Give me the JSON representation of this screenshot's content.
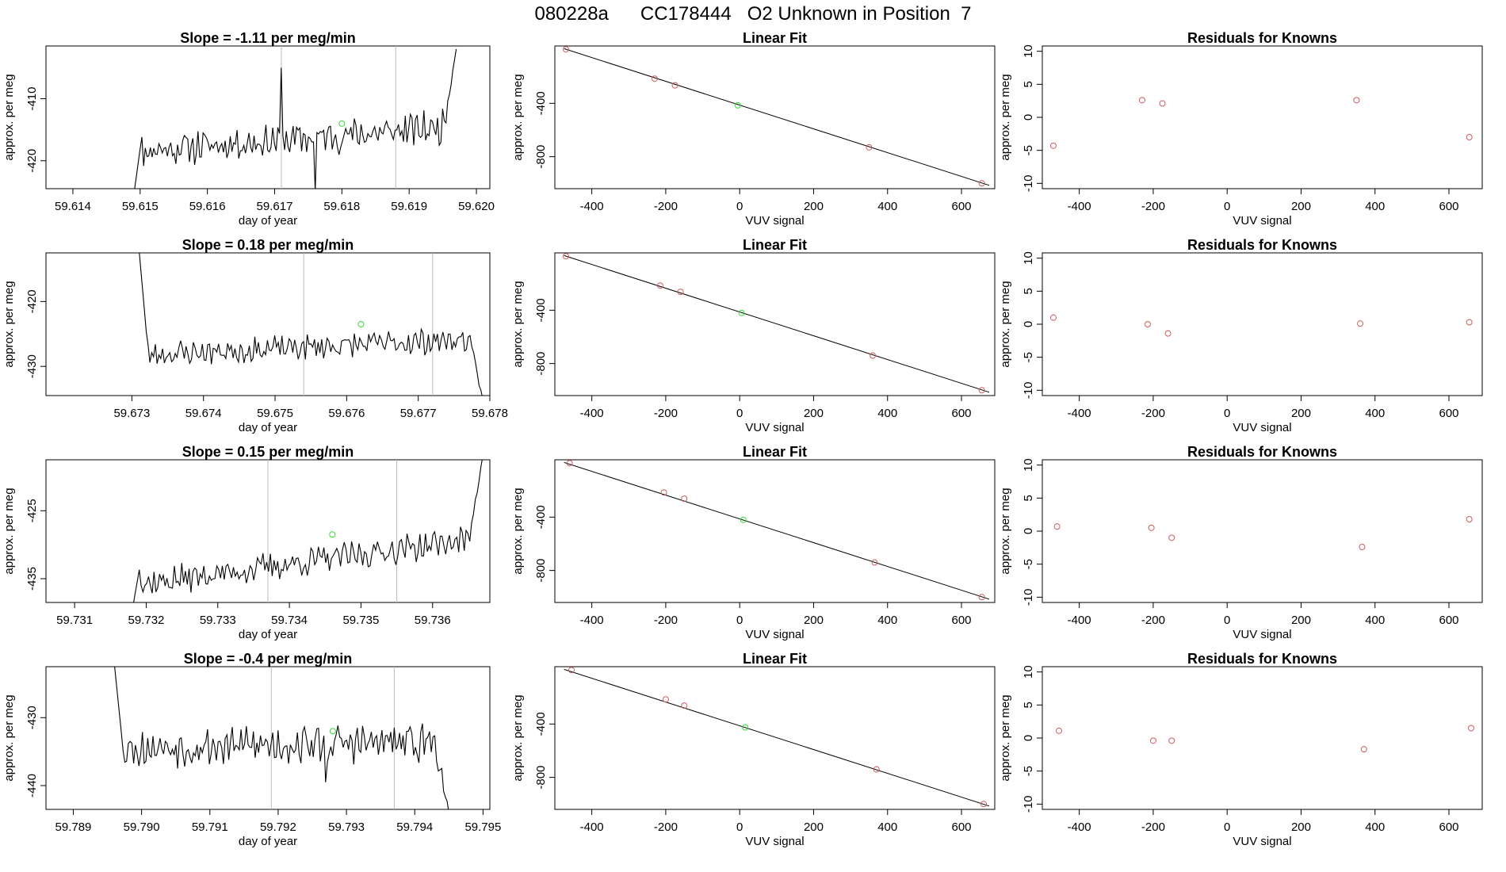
{
  "figure": {
    "title_id": "080228a",
    "title_cylinder": "CC178444",
    "title_text": "O2 Unknown in Position  7"
  },
  "colors": {
    "known": "#cd5c5c",
    "unknown": "#33dd33",
    "line": "#000000",
    "vline": "#bbbbbb"
  },
  "chart_data": [
    {
      "type": "line",
      "panel": "timeseries",
      "row": 1,
      "title": "Slope =  -1.11  per meg/min",
      "xlabel": "day of year",
      "ylabel": "approx. per meg",
      "xlim": [
        59.6136,
        59.6202
      ],
      "ylim": [
        -424.5,
        -401.5
      ],
      "xticks": [
        "59.614",
        "59.615",
        "59.616",
        "59.617",
        "59.618",
        "59.619",
        "59.620"
      ],
      "yticks": [
        "-410",
        "-420"
      ],
      "ytick_values": [
        -410,
        -420
      ],
      "x_start": 59.6149,
      "x_end": 59.6197,
      "start_value": -426,
      "base_level": -416.5,
      "trend_per_window": 4.0,
      "end_rise": -402,
      "noise": 2.2,
      "seed": 11,
      "vlines": [
        59.6171,
        59.6188
      ],
      "unknown_point": {
        "x": 59.618,
        "y": -414
      },
      "spikes": [
        {
          "x": 59.6176,
          "y": -425
        },
        {
          "x": 59.6171,
          "y": -405
        }
      ]
    },
    {
      "type": "scatter",
      "panel": "linear_fit",
      "row": 1,
      "title": "Linear Fit",
      "xlabel": "VUV signal",
      "ylabel": "approx. per meg",
      "xlim": [
        -500,
        690
      ],
      "ylim": [
        -1040,
        30
      ],
      "xticks": [
        "-400",
        "-200",
        "0",
        "200",
        "400",
        "600"
      ],
      "xtick_values": [
        -400,
        -200,
        0,
        200,
        400,
        600
      ],
      "yticks": [
        "-400",
        "-800"
      ],
      "ytick_values": [
        -400,
        -800
      ],
      "fit_line": {
        "x": [
          -475,
          675
        ],
        "y": [
          10,
          -1015
        ]
      },
      "knowns": [
        {
          "x": -470,
          "y": 5
        },
        {
          "x": -230,
          "y": -215
        },
        {
          "x": -175,
          "y": -265
        },
        {
          "x": 350,
          "y": -730
        },
        {
          "x": 655,
          "y": -1000
        }
      ],
      "unknown": {
        "x": -5,
        "y": -415
      }
    },
    {
      "type": "scatter",
      "panel": "residuals",
      "row": 1,
      "title": "Residuals for Knowns",
      "xlabel": "VUV signal",
      "ylabel": "approx. per meg",
      "xlim": [
        -500,
        690
      ],
      "ylim": [
        -10.8,
        10.8
      ],
      "xticks": [
        "-400",
        "-200",
        "0",
        "200",
        "400",
        "600"
      ],
      "xtick_values": [
        -400,
        -200,
        0,
        200,
        400,
        600
      ],
      "yticks": [
        "10",
        "5",
        "0",
        "-5",
        "-10"
      ],
      "ytick_values": [
        10,
        5,
        0,
        -5,
        -10
      ],
      "knowns": [
        {
          "x": -470,
          "y": -4.3
        },
        {
          "x": -230,
          "y": 2.6
        },
        {
          "x": -175,
          "y": 2.1
        },
        {
          "x": 350,
          "y": 2.6
        },
        {
          "x": 655,
          "y": -3.0
        }
      ]
    },
    {
      "type": "line",
      "panel": "timeseries",
      "row": 2,
      "title": "Slope =  0.18  per meg/min",
      "xlabel": "day of year",
      "ylabel": "approx. per meg",
      "xlim": [
        59.6718,
        59.678
      ],
      "ylim": [
        -434.5,
        -412.5
      ],
      "xticks": [
        "59.673",
        "59.674",
        "59.675",
        "59.676",
        "59.677",
        "59.678"
      ],
      "yticks": [
        "-420",
        "-430"
      ],
      "ytick_values": [
        -420,
        -430
      ],
      "x_start": 59.6731,
      "x_end": 59.6779,
      "start_value": -412,
      "base_level": -427,
      "trend_per_window": 2.5,
      "end_rise": -435,
      "noise": 1.6,
      "seed": 23,
      "vlines": [
        59.6754,
        59.6772
      ],
      "unknown_point": {
        "x": 59.6762,
        "y": -423.5
      },
      "spikes": [
        {
          "x": 59.6736,
          "y": -428
        }
      ]
    },
    {
      "type": "scatter",
      "panel": "linear_fit",
      "row": 2,
      "title": "Linear Fit",
      "xlabel": "VUV signal",
      "ylabel": "approx. per meg",
      "xlim": [
        -500,
        690
      ],
      "ylim": [
        -1040,
        30
      ],
      "xticks": [
        "-400",
        "-200",
        "0",
        "200",
        "400",
        "600"
      ],
      "xtick_values": [
        -400,
        -200,
        0,
        200,
        400,
        600
      ],
      "yticks": [
        "-400",
        "-800"
      ],
      "ytick_values": [
        -400,
        -800
      ],
      "fit_line": {
        "x": [
          -475,
          675
        ],
        "y": [
          10,
          -1015
        ]
      },
      "knowns": [
        {
          "x": -470,
          "y": 5
        },
        {
          "x": -215,
          "y": -215
        },
        {
          "x": -160,
          "y": -262
        },
        {
          "x": 360,
          "y": -740
        },
        {
          "x": 655,
          "y": -1000
        }
      ],
      "unknown": {
        "x": 5,
        "y": -420
      }
    },
    {
      "type": "scatter",
      "panel": "residuals",
      "row": 2,
      "title": "Residuals for Knowns",
      "xlabel": "VUV signal",
      "ylabel": "approx. per meg",
      "xlim": [
        -500,
        690
      ],
      "ylim": [
        -10.8,
        10.8
      ],
      "xticks": [
        "-400",
        "-200",
        "0",
        "200",
        "400",
        "600"
      ],
      "xtick_values": [
        -400,
        -200,
        0,
        200,
        400,
        600
      ],
      "yticks": [
        "10",
        "5",
        "0",
        "-5",
        "-10"
      ],
      "ytick_values": [
        10,
        5,
        0,
        -5,
        -10
      ],
      "knowns": [
        {
          "x": -470,
          "y": 1.0
        },
        {
          "x": -215,
          "y": 0.0
        },
        {
          "x": -160,
          "y": -1.4
        },
        {
          "x": 360,
          "y": 0.1
        },
        {
          "x": 655,
          "y": 0.3
        }
      ]
    },
    {
      "type": "line",
      "panel": "timeseries",
      "row": 3,
      "title": "Slope =  0.15  per meg/min",
      "xlabel": "day of year",
      "ylabel": "approx. per meg",
      "xlim": [
        59.7306,
        59.7368
      ],
      "ylim": [
        -438.5,
        -417.5
      ],
      "xticks": [
        "59.731",
        "59.732",
        "59.733",
        "59.734",
        "59.735",
        "59.736"
      ],
      "yticks": [
        "-425",
        "-435"
      ],
      "ytick_values": [
        -425,
        -435
      ],
      "x_start": 59.7318,
      "x_end": 59.7367,
      "start_value": -440,
      "base_level": -432.5,
      "trend_per_window": 7.0,
      "end_rise": -417,
      "noise": 1.7,
      "seed": 37,
      "vlines": [
        59.7337,
        59.7355
      ],
      "unknown_point": {
        "x": 59.7346,
        "y": -428.5
      },
      "spikes": []
    },
    {
      "type": "scatter",
      "panel": "linear_fit",
      "row": 3,
      "title": "Linear Fit",
      "xlabel": "VUV signal",
      "ylabel": "approx. per meg",
      "xlim": [
        -500,
        690
      ],
      "ylim": [
        -1040,
        30
      ],
      "xticks": [
        "-400",
        "-200",
        "0",
        "200",
        "400",
        "600"
      ],
      "xtick_values": [
        -400,
        -200,
        0,
        200,
        400,
        600
      ],
      "yticks": [
        "-400",
        "-800"
      ],
      "ytick_values": [
        -400,
        -800
      ],
      "fit_line": {
        "x": [
          -475,
          675
        ],
        "y": [
          10,
          -1015
        ]
      },
      "knowns": [
        {
          "x": -460,
          "y": 5
        },
        {
          "x": -205,
          "y": -215
        },
        {
          "x": -150,
          "y": -262
        },
        {
          "x": 365,
          "y": -740
        },
        {
          "x": 655,
          "y": -1000
        }
      ],
      "unknown": {
        "x": 10,
        "y": -420
      }
    },
    {
      "type": "scatter",
      "panel": "residuals",
      "row": 3,
      "title": "Residuals for Knowns",
      "xlabel": "VUV signal",
      "ylabel": "approx. per meg",
      "xlim": [
        -500,
        690
      ],
      "ylim": [
        -10.8,
        10.8
      ],
      "xticks": [
        "-400",
        "-200",
        "0",
        "200",
        "400",
        "600"
      ],
      "xtick_values": [
        -400,
        -200,
        0,
        200,
        400,
        600
      ],
      "yticks": [
        "10",
        "5",
        "0",
        "-5",
        "-10"
      ],
      "ytick_values": [
        10,
        5,
        0,
        -5,
        -10
      ],
      "knowns": [
        {
          "x": -460,
          "y": 0.7
        },
        {
          "x": -205,
          "y": 0.5
        },
        {
          "x": -150,
          "y": -1.0
        },
        {
          "x": 365,
          "y": -2.4
        },
        {
          "x": 655,
          "y": 1.8
        }
      ]
    },
    {
      "type": "line",
      "panel": "timeseries",
      "row": 4,
      "title": "Slope =  -0.4  per meg/min",
      "xlabel": "day of year",
      "ylabel": "approx. per meg",
      "xlim": [
        59.7886,
        59.7951
      ],
      "ylim": [
        -443.5,
        -422.5
      ],
      "xticks": [
        "59.789",
        "59.790",
        "59.791",
        "59.792",
        "59.793",
        "59.794",
        "59.795"
      ],
      "yticks": [
        "-430",
        "-440"
      ],
      "ytick_values": [
        -430,
        -440
      ],
      "x_start": 59.7896,
      "x_end": 59.7945,
      "start_value": -422,
      "base_level": -434,
      "trend_per_window": 1.0,
      "end_rise": -444,
      "noise": 2.3,
      "seed": 53,
      "vlines": [
        59.7919,
        59.7937
      ],
      "unknown_point": {
        "x": 59.7928,
        "y": -432
      },
      "spikes": [
        {
          "x": 59.7927,
          "y": -439.5
        }
      ]
    },
    {
      "type": "scatter",
      "panel": "linear_fit",
      "row": 4,
      "title": "Linear Fit",
      "xlabel": "VUV signal",
      "ylabel": "approx. per meg",
      "xlim": [
        -500,
        690
      ],
      "ylim": [
        -1040,
        30
      ],
      "xticks": [
        "-400",
        "-200",
        "0",
        "200",
        "400",
        "600"
      ],
      "xtick_values": [
        -400,
        -200,
        0,
        200,
        400,
        600
      ],
      "yticks": [
        "-400",
        "-800"
      ],
      "ytick_values": [
        -400,
        -800
      ],
      "fit_line": {
        "x": [
          -475,
          675
        ],
        "y": [
          10,
          -1015
        ]
      },
      "knowns": [
        {
          "x": -455,
          "y": 5
        },
        {
          "x": -200,
          "y": -215
        },
        {
          "x": -150,
          "y": -262
        },
        {
          "x": 370,
          "y": -740
        },
        {
          "x": 660,
          "y": -1000
        }
      ],
      "unknown": {
        "x": 15,
        "y": -425
      }
    },
    {
      "type": "scatter",
      "panel": "residuals",
      "row": 4,
      "title": "Residuals for Knowns",
      "xlabel": "VUV signal",
      "ylabel": "approx. per meg",
      "xlim": [
        -500,
        690
      ],
      "ylim": [
        -10.8,
        10.8
      ],
      "xticks": [
        "-400",
        "-200",
        "0",
        "200",
        "400",
        "600"
      ],
      "xtick_values": [
        -400,
        -200,
        0,
        200,
        400,
        600
      ],
      "yticks": [
        "10",
        "5",
        "0",
        "-5",
        "-10"
      ],
      "ytick_values": [
        10,
        5,
        0,
        -5,
        -10
      ],
      "knowns": [
        {
          "x": -455,
          "y": 1.1
        },
        {
          "x": -200,
          "y": -0.4
        },
        {
          "x": -150,
          "y": -0.4
        },
        {
          "x": 370,
          "y": -1.7
        },
        {
          "x": 660,
          "y": 1.5
        }
      ]
    }
  ]
}
